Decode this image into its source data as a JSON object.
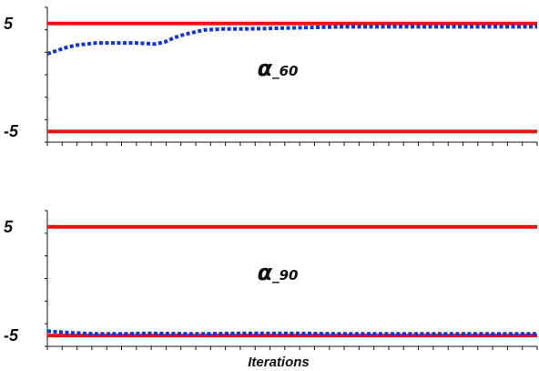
{
  "chart_data": [
    {
      "type": "line",
      "label": "α_60",
      "ylim": [
        -6,
        6
      ],
      "xlim": [
        0,
        100
      ],
      "yticks": [
        {
          "value": 5,
          "label": "5"
        },
        {
          "value": -5,
          "label": "-5"
        }
      ],
      "xlabel": "",
      "grid": false,
      "series": [
        {
          "style": "solid",
          "color": "#ee1111",
          "x": [
            0,
            100
          ],
          "values": [
            5,
            5
          ]
        },
        {
          "style": "solid",
          "color": "#ee1111",
          "x": [
            0,
            100
          ],
          "values": [
            -5,
            -5
          ]
        },
        {
          "style": "dotted",
          "color": "#1133dd",
          "x": [
            0,
            2,
            4,
            6,
            8,
            10,
            14,
            18,
            22,
            24,
            26,
            28,
            30,
            32,
            36,
            40,
            45,
            50,
            55,
            60,
            70,
            80,
            90,
            100
          ],
          "values": [
            2.2,
            2.5,
            2.8,
            3.0,
            3.1,
            3.2,
            3.2,
            3.2,
            3.1,
            3.3,
            3.7,
            4.0,
            4.2,
            4.4,
            4.5,
            4.5,
            4.55,
            4.6,
            4.65,
            4.7,
            4.7,
            4.7,
            4.7,
            4.7
          ]
        }
      ]
    },
    {
      "type": "line",
      "label": "α_90",
      "ylim": [
        -6,
        6
      ],
      "xlim": [
        0,
        100
      ],
      "yticks": [
        {
          "value": 5,
          "label": "5"
        },
        {
          "value": -5,
          "label": "-5"
        }
      ],
      "xlabel": "Iterations",
      "grid": false,
      "series": [
        {
          "style": "solid",
          "color": "#ee1111",
          "x": [
            0,
            100
          ],
          "values": [
            5,
            5
          ]
        },
        {
          "style": "solid",
          "color": "#ee1111",
          "x": [
            0,
            100
          ],
          "values": [
            -5,
            -5
          ]
        },
        {
          "style": "dotted",
          "color": "#1133dd",
          "x": [
            0,
            5,
            10,
            15,
            20,
            30,
            40,
            50,
            60,
            70,
            80,
            90,
            100
          ],
          "values": [
            -4.6,
            -4.75,
            -4.85,
            -4.85,
            -4.8,
            -4.85,
            -4.8,
            -4.8,
            -4.85,
            -4.85,
            -4.85,
            -4.85,
            -4.85
          ]
        }
      ]
    }
  ]
}
